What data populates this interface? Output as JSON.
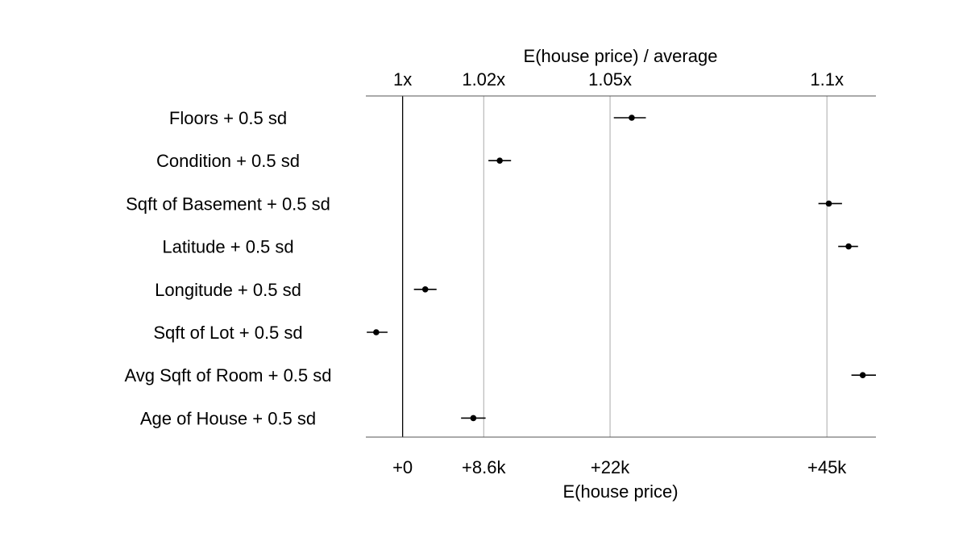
{
  "chart_data": {
    "type": "scatter",
    "top_axis_title": "E(house price) / average",
    "top_tick_labels": [
      "1x",
      "1.02x",
      "1.05x",
      "1.1x"
    ],
    "top_ticks": [
      {
        "label": "1x",
        "value": 0
      },
      {
        "label": "1.02x",
        "value": 8.6
      },
      {
        "label": "1.05x",
        "value": 22
      },
      {
        "label": "1.1x",
        "value": 45
      }
    ],
    "bottom_axis_title": "E(house price)",
    "bottom_tick_labels": [
      "+0",
      "+8.6k",
      "+22k",
      "+45k"
    ],
    "bottom_ticks": [
      {
        "label": "+0",
        "value": 0
      },
      {
        "label": "+8.6k",
        "value": 8.6
      },
      {
        "label": "+22k",
        "value": 22
      },
      {
        "label": "+45k",
        "value": 45
      }
    ],
    "x_unit": "thousands",
    "xlim": [
      -3.9,
      50.2
    ],
    "categories": [
      "Floors + 0.5 sd",
      "Condition + 0.5 sd",
      "Sqft of Basement + 0.5 sd",
      "Latitude + 0.5 sd",
      "Longitude + 0.5 sd",
      "Sqft of Lot + 0.5 sd",
      "Avg Sqft of Room + 0.5 sd",
      "Age of House + 0.5 sd"
    ],
    "points": [
      {
        "label": "Floors + 0.5 sd",
        "value": 24.3,
        "low": 22.4,
        "high": 25.8
      },
      {
        "label": "Condition + 0.5 sd",
        "value": 10.3,
        "low": 9.1,
        "high": 11.5
      },
      {
        "label": "Sqft of Basement + 0.5 sd",
        "value": 45.2,
        "low": 44.1,
        "high": 46.6
      },
      {
        "label": "Latitude + 0.5 sd",
        "value": 47.3,
        "low": 46.2,
        "high": 48.3
      },
      {
        "label": "Longitude + 0.5 sd",
        "value": 2.4,
        "low": 1.2,
        "high": 3.6
      },
      {
        "label": "Sqft of Lot + 0.5 sd",
        "value": -2.8,
        "low": -3.8,
        "high": -1.6
      },
      {
        "label": "Avg Sqft of Room + 0.5 sd",
        "value": 48.8,
        "low": 47.6,
        "high": 50.2
      },
      {
        "label": "Age of House + 0.5 sd",
        "value": 7.5,
        "low": 6.2,
        "high": 8.8
      }
    ],
    "grid": true
  }
}
